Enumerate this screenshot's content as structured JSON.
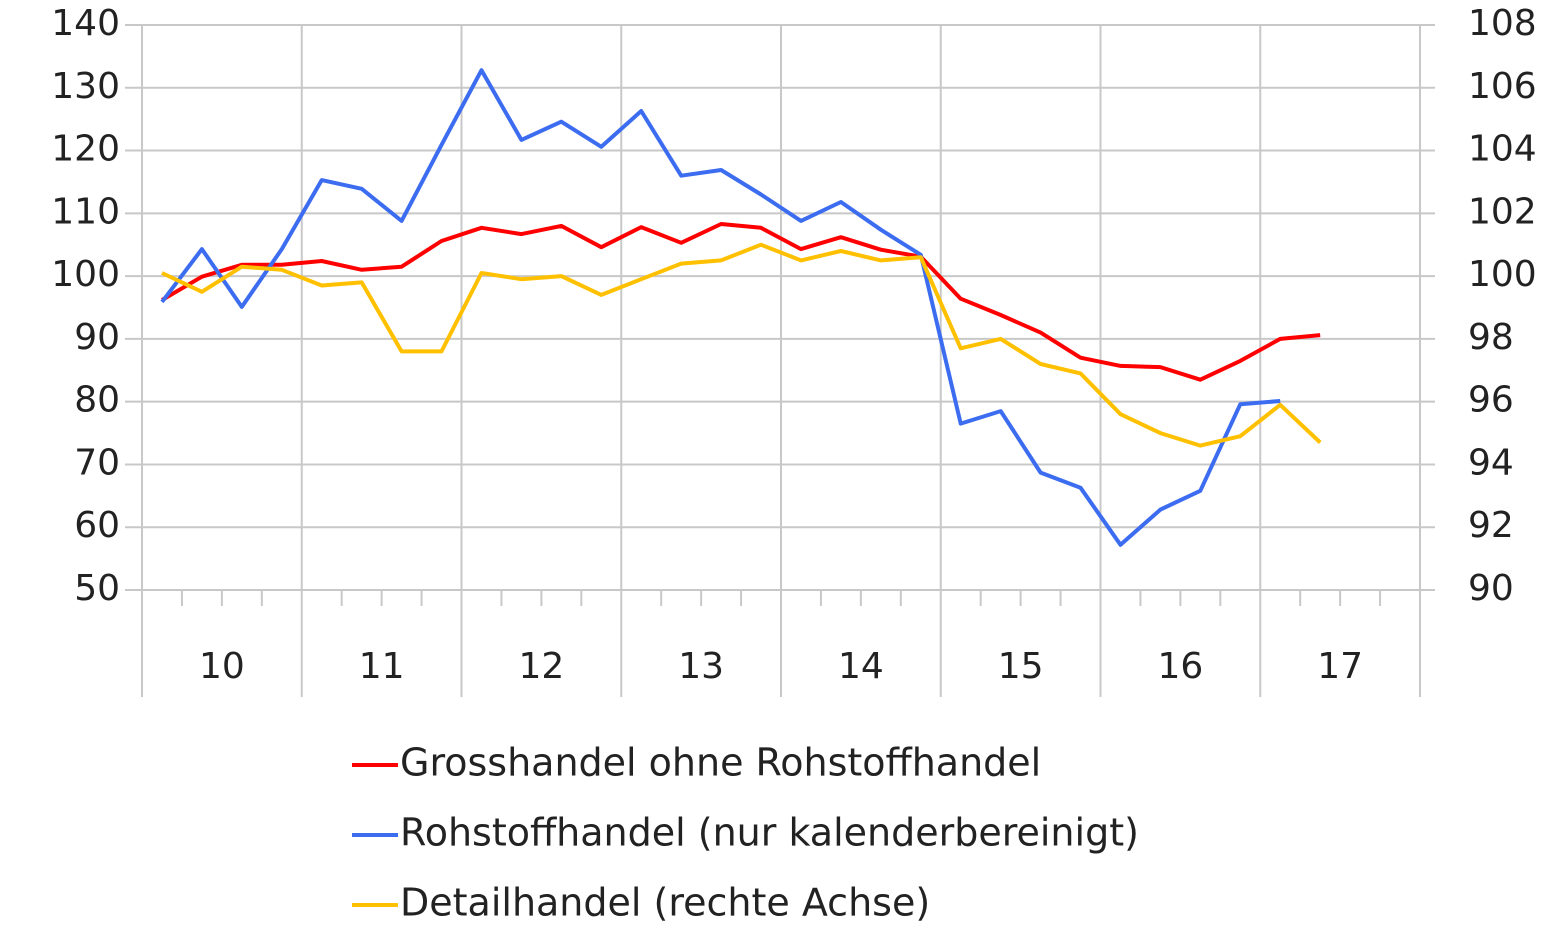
{
  "chart_data": {
    "type": "line",
    "years": [
      "10",
      "11",
      "12",
      "13",
      "14",
      "15",
      "16",
      "17"
    ],
    "ylim": [
      50,
      140
    ],
    "yticks": [
      50,
      60,
      70,
      80,
      90,
      100,
      110,
      120,
      130,
      140
    ],
    "y2lim": [
      90,
      108
    ],
    "y2ticks": [
      90,
      92,
      94,
      96,
      98,
      100,
      102,
      104,
      106,
      108
    ],
    "grid": true,
    "legend": "bottom",
    "series": [
      {
        "name": "Grosshandel ohne Rohstoffhandel",
        "color": "#ff0000",
        "values": [
          96.2,
          99.9,
          101.8,
          101.8,
          102.4,
          101.0,
          101.5,
          105.6,
          107.7,
          106.7,
          108.0,
          104.6,
          107.8,
          105.3,
          108.3,
          107.7,
          104.3,
          106.2,
          104.2,
          103.1,
          96.4,
          93.8,
          91.0,
          87.0,
          85.7,
          85.5,
          83.5,
          86.5,
          90.0,
          90.6,
          null,
          null
        ]
      },
      {
        "name": "Rohstoffhandel (nur kalenderbereinigt)",
        "color": "#3c6cf0",
        "values": [
          95.9,
          104.3,
          95.1,
          104.3,
          115.3,
          113.9,
          108.8,
          120.9,
          132.8,
          121.7,
          124.6,
          120.6,
          126.3,
          116.0,
          116.9,
          113.0,
          108.8,
          111.8,
          107.4,
          103.4,
          76.5,
          78.5,
          68.7,
          66.3,
          57.2,
          62.8,
          65.8,
          79.6,
          80.1,
          null,
          null,
          null
        ]
      },
      {
        "name": "Detailhandel (rechte Achse)",
        "color": "#ffc000",
        "axis": "y2",
        "values": [
          100.1,
          99.5,
          100.3,
          100.2,
          99.7,
          99.8,
          97.6,
          97.6,
          100.1,
          99.9,
          100.0,
          99.4,
          99.9,
          100.4,
          100.5,
          101.0,
          100.5,
          100.8,
          100.5,
          100.6,
          97.7,
          98.0,
          97.2,
          96.9,
          95.6,
          95.0,
          94.6,
          94.9,
          95.9,
          94.7,
          null,
          null
        ]
      }
    ]
  }
}
